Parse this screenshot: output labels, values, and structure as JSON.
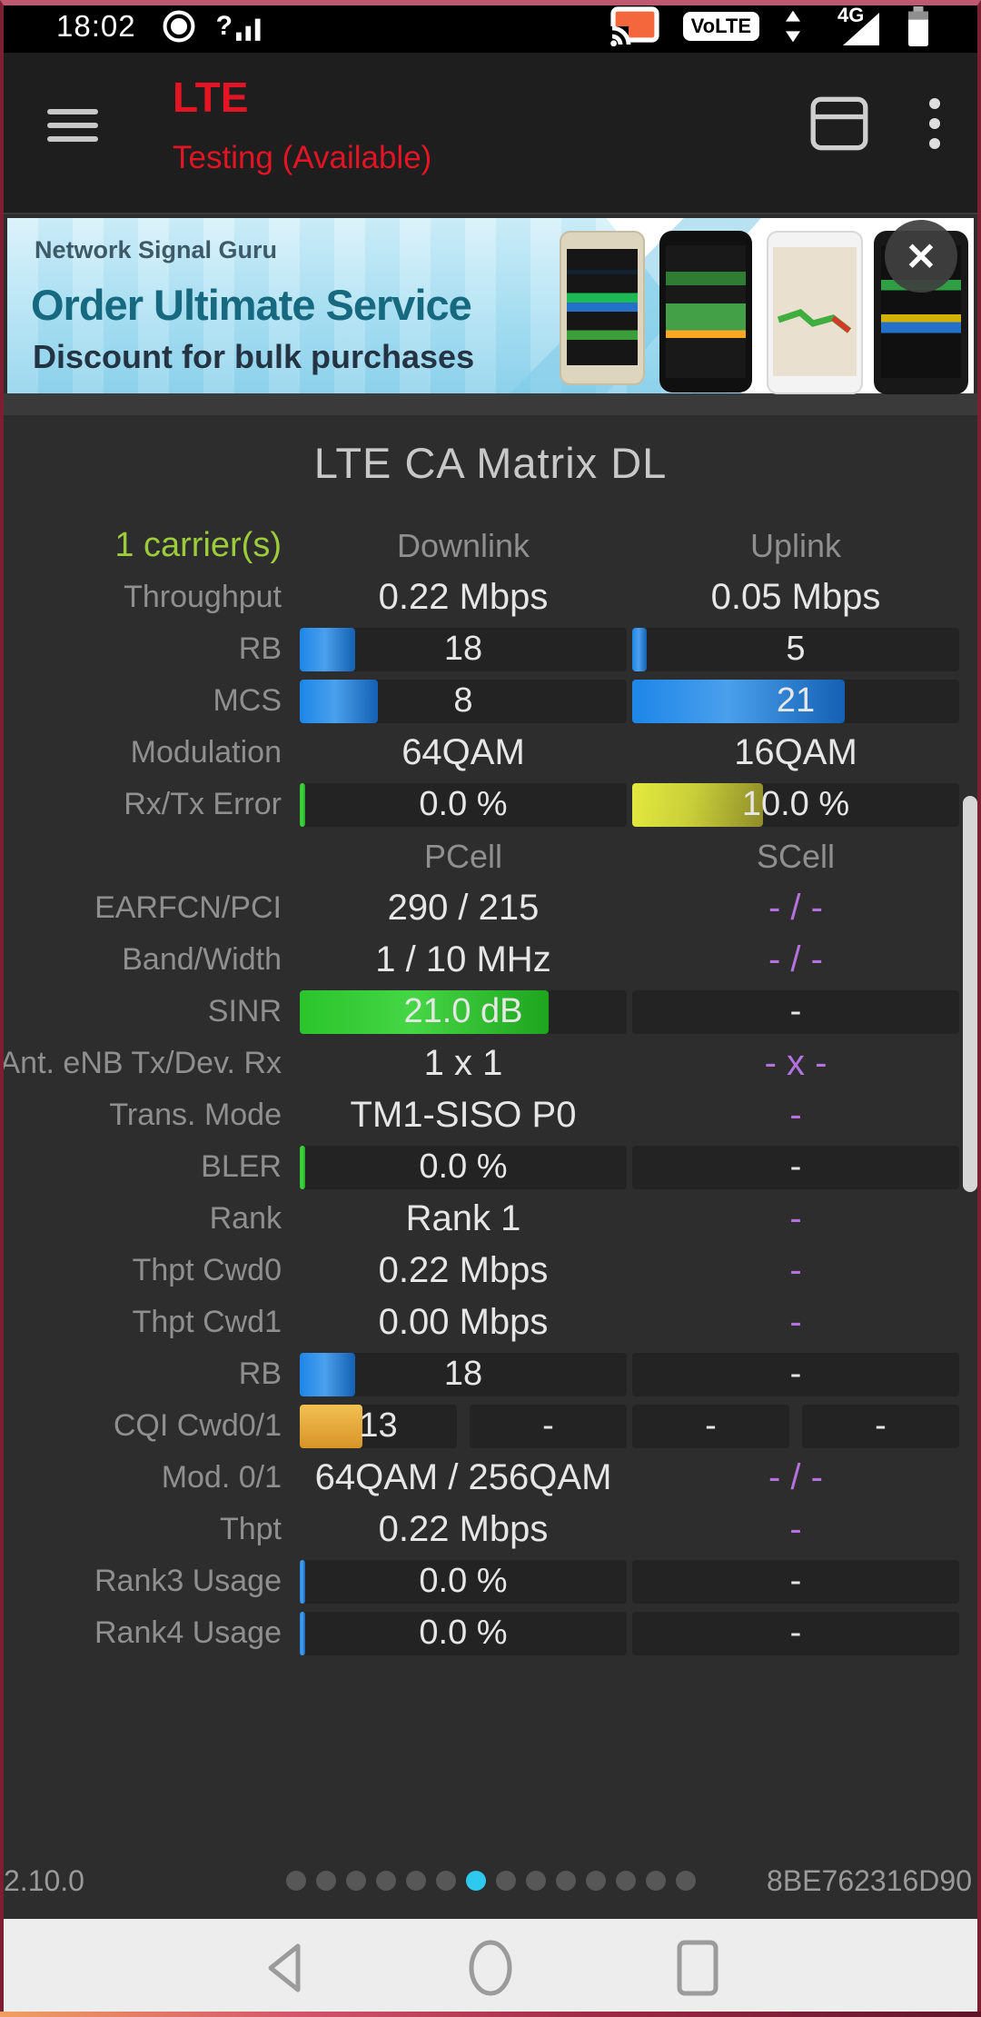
{
  "status_bar": {
    "time": "18:02",
    "volte_label": "VoLTE",
    "network_label": "4G"
  },
  "app_bar": {
    "title": "LTE",
    "subtitle": "Testing (Available)"
  },
  "banner": {
    "brand": "Network Signal Guru",
    "headline": "Order Ultimate Service",
    "subheadline": "Discount for bulk purchases",
    "close_glyph": "✕"
  },
  "table": {
    "title": "LTE CA Matrix DL",
    "rows": [
      {
        "label": "1 carrier(s)",
        "label_color": "green",
        "cells": [
          {
            "type": "head",
            "text": "Downlink"
          },
          {
            "type": "head",
            "text": "Uplink"
          }
        ]
      },
      {
        "label": "Throughput",
        "cells": [
          {
            "type": "text",
            "text": "0.22 Mbps"
          },
          {
            "type": "text",
            "text": "0.05 Mbps"
          }
        ]
      },
      {
        "label": "RB",
        "cells": [
          {
            "type": "bar",
            "text": "18",
            "frac": 0.17,
            "color": "blue"
          },
          {
            "type": "bar",
            "text": "5",
            "frac": 0.045,
            "color": "blue"
          }
        ]
      },
      {
        "label": "MCS",
        "cells": [
          {
            "type": "bar",
            "text": "8",
            "frac": 0.24,
            "color": "blue"
          },
          {
            "type": "bar",
            "text": "21",
            "frac": 0.65,
            "color": "blue"
          }
        ]
      },
      {
        "label": "Modulation",
        "cells": [
          {
            "type": "text",
            "text": "64QAM"
          },
          {
            "type": "text",
            "text": "16QAM"
          }
        ]
      },
      {
        "label": "Rx/Tx Error",
        "cells": [
          {
            "type": "bar",
            "text": "0.0 %",
            "frac": 0.016,
            "color": "green"
          },
          {
            "type": "bar",
            "text": "10.0 %",
            "frac": 0.4,
            "color": "yellow"
          }
        ]
      },
      {
        "label": "",
        "cells": [
          {
            "type": "head",
            "text": "PCell"
          },
          {
            "type": "head",
            "text": "SCell"
          }
        ]
      },
      {
        "label": "EARFCN/PCI",
        "cells": [
          {
            "type": "text",
            "text": "290 / 215"
          },
          {
            "type": "text",
            "text": "- / -",
            "purple": true
          }
        ]
      },
      {
        "label": "Band/Width",
        "cells": [
          {
            "type": "text",
            "text": "1 / 10 MHz"
          },
          {
            "type": "text",
            "text": "- / -",
            "purple": true
          }
        ]
      },
      {
        "label": "SINR",
        "cells": [
          {
            "type": "bar",
            "text": "21.0 dB",
            "frac": 0.76,
            "color": "green"
          },
          {
            "type": "bar",
            "text": "-",
            "frac": 0,
            "color": "none"
          }
        ]
      },
      {
        "label": "Ant. eNB Tx/Dev. Rx",
        "cells": [
          {
            "type": "text",
            "text": "1 x 1"
          },
          {
            "type": "text",
            "text": "- x -",
            "purple": true
          }
        ]
      },
      {
        "label": "Trans. Mode",
        "cells": [
          {
            "type": "text",
            "text": "TM1-SISO P0"
          },
          {
            "type": "text",
            "text": "-",
            "purple": true
          }
        ]
      },
      {
        "label": "BLER",
        "cells": [
          {
            "type": "bar",
            "text": "0.0 %",
            "frac": 0.016,
            "color": "green"
          },
          {
            "type": "bar",
            "text": "-",
            "frac": 0,
            "color": "none"
          }
        ]
      },
      {
        "label": "Rank",
        "cells": [
          {
            "type": "text",
            "text": "Rank 1"
          },
          {
            "type": "text",
            "text": "-",
            "purple": true
          }
        ]
      },
      {
        "label": "Thpt Cwd0",
        "cells": [
          {
            "type": "text",
            "text": "0.22 Mbps"
          },
          {
            "type": "text",
            "text": "-",
            "purple": true
          }
        ]
      },
      {
        "label": "Thpt Cwd1",
        "cells": [
          {
            "type": "text",
            "text": "0.00 Mbps"
          },
          {
            "type": "text",
            "text": "-",
            "purple": true
          }
        ]
      },
      {
        "label": "RB",
        "cells": [
          {
            "type": "bar",
            "text": "18",
            "frac": 0.17,
            "color": "blue"
          },
          {
            "type": "bar",
            "text": "-",
            "frac": 0,
            "color": "none"
          }
        ]
      },
      {
        "label": "CQI Cwd0/1",
        "cells": [
          {
            "type": "bar2",
            "parts": [
              {
                "text": "13",
                "frac": 0.4,
                "color": "gold"
              },
              {
                "text": "-",
                "frac": 0,
                "color": "none"
              }
            ]
          },
          {
            "type": "bar2",
            "parts": [
              {
                "text": "-",
                "frac": 0,
                "color": "none"
              },
              {
                "text": "-",
                "frac": 0,
                "color": "none"
              }
            ]
          }
        ]
      },
      {
        "label": "Mod. 0/1",
        "cells": [
          {
            "type": "text",
            "text": "64QAM / 256QAM"
          },
          {
            "type": "text",
            "text": "- / -",
            "purple": true
          }
        ]
      },
      {
        "label": "Thpt",
        "cells": [
          {
            "type": "text",
            "text": "0.22 Mbps"
          },
          {
            "type": "text",
            "text": "-",
            "purple": true
          }
        ]
      },
      {
        "label": "Rank3 Usage",
        "cells": [
          {
            "type": "bar",
            "text": "0.0 %",
            "frac": 0.016,
            "color": "blue"
          },
          {
            "type": "bar",
            "text": "-",
            "frac": 0,
            "color": "none"
          }
        ]
      },
      {
        "label": "Rank4 Usage",
        "cells": [
          {
            "type": "bar",
            "text": "0.0 %",
            "frac": 0.016,
            "color": "blue"
          },
          {
            "type": "bar",
            "text": "-",
            "frac": 0,
            "color": "none"
          }
        ]
      }
    ]
  },
  "footer": {
    "version": "2.10.0",
    "device_id": "8BE762316D90",
    "page_dots": {
      "count": 14,
      "active_index": 6
    }
  },
  "colors": {
    "accent_green": "#9ccb3b",
    "value_purple": "#b472e0",
    "bar_blue": "#1d86e8",
    "bar_green": "#2bc42b",
    "bar_yellow": "#d4d93a",
    "bar_gold": "#e2a838",
    "dot_active": "#2ec9ef",
    "title_red": "#e31424"
  }
}
